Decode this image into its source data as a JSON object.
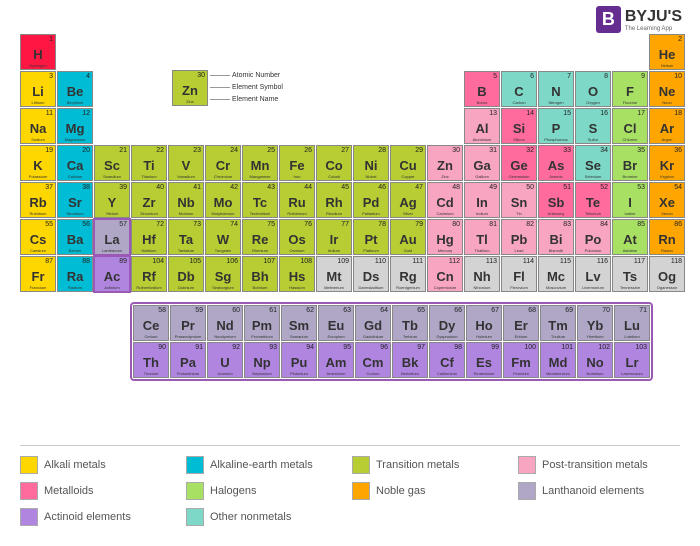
{
  "logo": {
    "badge": "B",
    "main": "BYJU'S",
    "sub": "The Learning App"
  },
  "colors": {
    "alkali": "#ffd700",
    "alkaline": "#00bcd4",
    "transition": "#b8cc33",
    "post": "#f8a5c2",
    "metalloid": "#ff6b9d",
    "halogen": "#a8e063",
    "noble": "#ffa500",
    "lanthanoid": "#b0a7c7",
    "actinoid": "#b085e0",
    "nonmetal": "#7dd8c7",
    "hydrogen": "#ff1744",
    "unknown": "#d3d3d3"
  },
  "key": {
    "num": "30",
    "sym": "Zn",
    "name": "Zinc",
    "labels": [
      "Atomic Number",
      "Element Symbol",
      "Element Name"
    ]
  },
  "legend": [
    {
      "label": "Alkali metals",
      "ck": "alkali"
    },
    {
      "label": "Alkaline-earth metals",
      "ck": "alkaline"
    },
    {
      "label": "Transition metals",
      "ck": "transition"
    },
    {
      "label": "Post-transition metals",
      "ck": "post"
    },
    {
      "label": "Metalloids",
      "ck": "metalloid"
    },
    {
      "label": "Halogens",
      "ck": "halogen"
    },
    {
      "label": "Noble gas",
      "ck": "noble"
    },
    {
      "label": "Lanthanoid elements",
      "ck": "lanthanoid"
    },
    {
      "label": "Actinoid elements",
      "ck": "actinoid"
    },
    {
      "label": "Other nonmetals",
      "ck": "nonmetal"
    }
  ],
  "main_grid": [
    [
      {
        "n": 1,
        "s": "H",
        "e": "Hydrogen",
        "c": "hydrogen"
      },
      null,
      null,
      null,
      null,
      null,
      null,
      null,
      null,
      null,
      null,
      null,
      null,
      null,
      null,
      null,
      null,
      {
        "n": 2,
        "s": "He",
        "e": "Helium",
        "c": "noble"
      }
    ],
    [
      {
        "n": 3,
        "s": "Li",
        "e": "Lithium",
        "c": "alkali"
      },
      {
        "n": 4,
        "s": "Be",
        "e": "Beryllium",
        "c": "alkaline"
      },
      null,
      null,
      null,
      null,
      null,
      null,
      null,
      null,
      null,
      null,
      {
        "n": 5,
        "s": "B",
        "e": "Boron",
        "c": "metalloid"
      },
      {
        "n": 6,
        "s": "C",
        "e": "Carbon",
        "c": "nonmetal"
      },
      {
        "n": 7,
        "s": "N",
        "e": "Nitrogen",
        "c": "nonmetal"
      },
      {
        "n": 8,
        "s": "O",
        "e": "Oxygen",
        "c": "nonmetal"
      },
      {
        "n": 9,
        "s": "F",
        "e": "Fluorine",
        "c": "halogen"
      },
      {
        "n": 10,
        "s": "Ne",
        "e": "Neon",
        "c": "noble"
      }
    ],
    [
      {
        "n": 11,
        "s": "Na",
        "e": "Sodium",
        "c": "alkali"
      },
      {
        "n": 12,
        "s": "Mg",
        "e": "Magnesium",
        "c": "alkaline"
      },
      null,
      null,
      null,
      null,
      null,
      null,
      null,
      null,
      null,
      null,
      {
        "n": 13,
        "s": "Al",
        "e": "Aluminium",
        "c": "post"
      },
      {
        "n": 14,
        "s": "Si",
        "e": "Silicon",
        "c": "metalloid"
      },
      {
        "n": 15,
        "s": "P",
        "e": "Phosphorous",
        "c": "nonmetal"
      },
      {
        "n": 16,
        "s": "S",
        "e": "Sulfur",
        "c": "nonmetal"
      },
      {
        "n": 17,
        "s": "Cl",
        "e": "Chlorine",
        "c": "halogen"
      },
      {
        "n": 18,
        "s": "Ar",
        "e": "Argon",
        "c": "noble"
      }
    ],
    [
      {
        "n": 19,
        "s": "K",
        "e": "Potassium",
        "c": "alkali"
      },
      {
        "n": 20,
        "s": "Ca",
        "e": "Calcium",
        "c": "alkaline"
      },
      {
        "n": 21,
        "s": "Sc",
        "e": "Scandium",
        "c": "transition"
      },
      {
        "n": 22,
        "s": "Ti",
        "e": "Titanium",
        "c": "transition"
      },
      {
        "n": 23,
        "s": "V",
        "e": "Vanadium",
        "c": "transition"
      },
      {
        "n": 24,
        "s": "Cr",
        "e": "Chromium",
        "c": "transition"
      },
      {
        "n": 25,
        "s": "Mn",
        "e": "Manganese",
        "c": "transition"
      },
      {
        "n": 26,
        "s": "Fe",
        "e": "Iron",
        "c": "transition"
      },
      {
        "n": 27,
        "s": "Co",
        "e": "Cobalt",
        "c": "transition"
      },
      {
        "n": 28,
        "s": "Ni",
        "e": "Nickel",
        "c": "transition"
      },
      {
        "n": 29,
        "s": "Cu",
        "e": "Copper",
        "c": "transition"
      },
      {
        "n": 30,
        "s": "Zn",
        "e": "Zinc",
        "c": "post"
      },
      {
        "n": 31,
        "s": "Ga",
        "e": "Gallium",
        "c": "post"
      },
      {
        "n": 32,
        "s": "Ge",
        "e": "Germanium",
        "c": "metalloid"
      },
      {
        "n": 33,
        "s": "As",
        "e": "Arsenic",
        "c": "metalloid"
      },
      {
        "n": 34,
        "s": "Se",
        "e": "Selenium",
        "c": "nonmetal"
      },
      {
        "n": 35,
        "s": "Br",
        "e": "Bromine",
        "c": "halogen"
      },
      {
        "n": 36,
        "s": "Kr",
        "e": "Krypton",
        "c": "noble"
      }
    ],
    [
      {
        "n": 37,
        "s": "Rb",
        "e": "Rubidium",
        "c": "alkali"
      },
      {
        "n": 38,
        "s": "Sr",
        "e": "Strontium",
        "c": "alkaline"
      },
      {
        "n": 39,
        "s": "Y",
        "e": "Yttrium",
        "c": "transition"
      },
      {
        "n": 40,
        "s": "Zr",
        "e": "Zirconium",
        "c": "transition"
      },
      {
        "n": 41,
        "s": "Nb",
        "e": "Niobium",
        "c": "transition"
      },
      {
        "n": 42,
        "s": "Mo",
        "e": "Molybdenum",
        "c": "transition"
      },
      {
        "n": 43,
        "s": "Tc",
        "e": "Technetium",
        "c": "transition"
      },
      {
        "n": 44,
        "s": "Ru",
        "e": "Ruthenium",
        "c": "transition"
      },
      {
        "n": 45,
        "s": "Rh",
        "e": "Rhodium",
        "c": "transition"
      },
      {
        "n": 46,
        "s": "Pd",
        "e": "Palladium",
        "c": "transition"
      },
      {
        "n": 47,
        "s": "Ag",
        "e": "Silver",
        "c": "transition"
      },
      {
        "n": 48,
        "s": "Cd",
        "e": "Cadmium",
        "c": "post"
      },
      {
        "n": 49,
        "s": "In",
        "e": "Indium",
        "c": "post"
      },
      {
        "n": 50,
        "s": "Sn",
        "e": "Tin",
        "c": "post"
      },
      {
        "n": 51,
        "s": "Sb",
        "e": "Antimony",
        "c": "metalloid"
      },
      {
        "n": 52,
        "s": "Te",
        "e": "Tellurium",
        "c": "metalloid"
      },
      {
        "n": 53,
        "s": "I",
        "e": "Iodine",
        "c": "halogen"
      },
      {
        "n": 54,
        "s": "Xe",
        "e": "Xenon",
        "c": "noble"
      }
    ],
    [
      {
        "n": 55,
        "s": "Cs",
        "e": "Caesium",
        "c": "alkali"
      },
      {
        "n": 56,
        "s": "Ba",
        "e": "Barium",
        "c": "alkaline"
      },
      {
        "n": 57,
        "s": "La",
        "e": "Lanthanum",
        "c": "lanthanoid",
        "border": true
      },
      {
        "n": 72,
        "s": "Hf",
        "e": "Hafnium",
        "c": "transition"
      },
      {
        "n": 73,
        "s": "Ta",
        "e": "Tantalum",
        "c": "transition"
      },
      {
        "n": 74,
        "s": "W",
        "e": "Tungsten",
        "c": "transition"
      },
      {
        "n": 75,
        "s": "Re",
        "e": "Rhenium",
        "c": "transition"
      },
      {
        "n": 76,
        "s": "Os",
        "e": "Osmium",
        "c": "transition"
      },
      {
        "n": 77,
        "s": "Ir",
        "e": "Iridium",
        "c": "transition"
      },
      {
        "n": 78,
        "s": "Pt",
        "e": "Platinum",
        "c": "transition"
      },
      {
        "n": 79,
        "s": "Au",
        "e": "Gold",
        "c": "transition"
      },
      {
        "n": 80,
        "s": "Hg",
        "e": "Mercury",
        "c": "post"
      },
      {
        "n": 81,
        "s": "Tl",
        "e": "Thallium",
        "c": "post"
      },
      {
        "n": 82,
        "s": "Pb",
        "e": "Lead",
        "c": "post"
      },
      {
        "n": 83,
        "s": "Bi",
        "e": "Bismuth",
        "c": "post"
      },
      {
        "n": 84,
        "s": "Po",
        "e": "Polonium",
        "c": "post"
      },
      {
        "n": 85,
        "s": "At",
        "e": "Astatine",
        "c": "halogen"
      },
      {
        "n": 86,
        "s": "Rn",
        "e": "Radon",
        "c": "noble"
      }
    ],
    [
      {
        "n": 87,
        "s": "Fr",
        "e": "Francium",
        "c": "alkali"
      },
      {
        "n": 88,
        "s": "Ra",
        "e": "Radium",
        "c": "alkaline"
      },
      {
        "n": 89,
        "s": "Ac",
        "e": "Actinium",
        "c": "actinoid",
        "border": true
      },
      {
        "n": 104,
        "s": "Rf",
        "e": "Rutherfordium",
        "c": "transition"
      },
      {
        "n": 105,
        "s": "Db",
        "e": "Dubnium",
        "c": "transition"
      },
      {
        "n": 106,
        "s": "Sg",
        "e": "Seaborgium",
        "c": "transition"
      },
      {
        "n": 107,
        "s": "Bh",
        "e": "Bohrium",
        "c": "transition"
      },
      {
        "n": 108,
        "s": "Hs",
        "e": "Hassium",
        "c": "transition"
      },
      {
        "n": 109,
        "s": "Mt",
        "e": "Meitnerium",
        "c": "unknown"
      },
      {
        "n": 110,
        "s": "Ds",
        "e": "Darmstadtium",
        "c": "unknown"
      },
      {
        "n": 111,
        "s": "Rg",
        "e": "Roentgenium",
        "c": "unknown"
      },
      {
        "n": 112,
        "s": "Cn",
        "e": "Copernicium",
        "c": "post"
      },
      {
        "n": 113,
        "s": "Nh",
        "e": "Nihonium",
        "c": "unknown"
      },
      {
        "n": 114,
        "s": "Fl",
        "e": "Flerovium",
        "c": "unknown"
      },
      {
        "n": 115,
        "s": "Mc",
        "e": "Moscovium",
        "c": "unknown"
      },
      {
        "n": 116,
        "s": "Lv",
        "e": "Livermorium",
        "c": "unknown"
      },
      {
        "n": 117,
        "s": "Ts",
        "e": "Tennessine",
        "c": "unknown"
      },
      {
        "n": 118,
        "s": "Og",
        "e": "Oganesson",
        "c": "unknown"
      }
    ]
  ],
  "f_block": [
    [
      {
        "n": 58,
        "s": "Ce",
        "e": "Cerium",
        "c": "lanthanoid"
      },
      {
        "n": 59,
        "s": "Pr",
        "e": "Praseodymium",
        "c": "lanthanoid"
      },
      {
        "n": 60,
        "s": "Nd",
        "e": "Neodymium",
        "c": "lanthanoid"
      },
      {
        "n": 61,
        "s": "Pm",
        "e": "Promethium",
        "c": "lanthanoid"
      },
      {
        "n": 62,
        "s": "Sm",
        "e": "Samarium",
        "c": "lanthanoid"
      },
      {
        "n": 63,
        "s": "Eu",
        "e": "Europium",
        "c": "lanthanoid"
      },
      {
        "n": 64,
        "s": "Gd",
        "e": "Gadolinium",
        "c": "lanthanoid"
      },
      {
        "n": 65,
        "s": "Tb",
        "e": "Terbium",
        "c": "lanthanoid"
      },
      {
        "n": 66,
        "s": "Dy",
        "e": "Dysprosium",
        "c": "lanthanoid"
      },
      {
        "n": 67,
        "s": "Ho",
        "e": "Holmium",
        "c": "lanthanoid"
      },
      {
        "n": 68,
        "s": "Er",
        "e": "Erbium",
        "c": "lanthanoid"
      },
      {
        "n": 69,
        "s": "Tm",
        "e": "Thulium",
        "c": "lanthanoid"
      },
      {
        "n": 70,
        "s": "Yb",
        "e": "Ytterbium",
        "c": "lanthanoid"
      },
      {
        "n": 71,
        "s": "Lu",
        "e": "Lutetium",
        "c": "lanthanoid"
      }
    ],
    [
      {
        "n": 90,
        "s": "Th",
        "e": "Thorium",
        "c": "actinoid"
      },
      {
        "n": 91,
        "s": "Pa",
        "e": "Protactinium",
        "c": "actinoid"
      },
      {
        "n": 92,
        "s": "U",
        "e": "Uranium",
        "c": "actinoid"
      },
      {
        "n": 93,
        "s": "Np",
        "e": "Neptunium",
        "c": "actinoid"
      },
      {
        "n": 94,
        "s": "Pu",
        "e": "Plutonium",
        "c": "actinoid"
      },
      {
        "n": 95,
        "s": "Am",
        "e": "Americium",
        "c": "actinoid"
      },
      {
        "n": 96,
        "s": "Cm",
        "e": "Curium",
        "c": "actinoid"
      },
      {
        "n": 97,
        "s": "Bk",
        "e": "Berkelium",
        "c": "actinoid"
      },
      {
        "n": 98,
        "s": "Cf",
        "e": "Californium",
        "c": "actinoid"
      },
      {
        "n": 99,
        "s": "Es",
        "e": "Einsteinium",
        "c": "actinoid"
      },
      {
        "n": 100,
        "s": "Fm",
        "e": "Fermium",
        "c": "actinoid"
      },
      {
        "n": 101,
        "s": "Md",
        "e": "Mendelevium",
        "c": "actinoid"
      },
      {
        "n": 102,
        "s": "No",
        "e": "Nobelium",
        "c": "actinoid"
      },
      {
        "n": 103,
        "s": "Lr",
        "e": "Lawrencium",
        "c": "actinoid"
      }
    ]
  ]
}
